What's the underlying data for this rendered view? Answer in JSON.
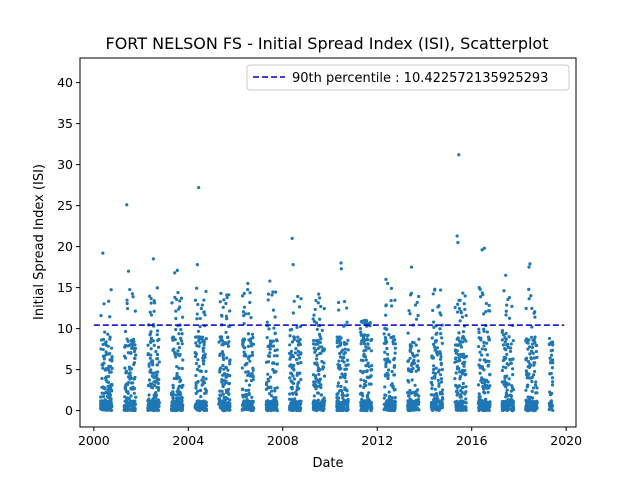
{
  "chart_data": {
    "type": "scatter",
    "title": "FORT NELSON FS - Initial Spread Index (ISI), Scatterplot",
    "xlabel": "Date",
    "ylabel": "Initial Spread Index (ISI)",
    "xlim": [
      "1999-06-01",
      "2020-06-01"
    ],
    "ylim": [
      -2,
      43
    ],
    "x_ticks": [
      "2000-01-01",
      "2004-01-01",
      "2008-01-01",
      "2012-01-01",
      "2016-01-01",
      "2020-01-01"
    ],
    "x_tick_labels": [
      "2000",
      "2004",
      "2008",
      "2012",
      "2016",
      "2020"
    ],
    "y_ticks": [
      0,
      5,
      10,
      15,
      20,
      25,
      30,
      35,
      40
    ],
    "grid": false,
    "legend_position": "top-right",
    "point_color": "#1f77b4",
    "reference_line": {
      "label": "90th percentile : 10.422572135925293",
      "value": 10.422572135925293,
      "x_range": [
        "2000-01-01",
        "2019-12-01"
      ],
      "color": "#0000cc",
      "style": "dashed"
    },
    "seasons": [
      {
        "start": "2000-04-15",
        "end": "2000-10-10",
        "max": 19.2
      },
      {
        "start": "2001-04-15",
        "end": "2001-10-10",
        "max": 25.1
      },
      {
        "start": "2002-04-15",
        "end": "2002-10-10",
        "max": 18.5
      },
      {
        "start": "2003-04-15",
        "end": "2003-10-10",
        "max": 17.1
      },
      {
        "start": "2004-04-15",
        "end": "2004-10-10",
        "max": 27.2
      },
      {
        "start": "2005-04-15",
        "end": "2005-10-10",
        "max": 14.3
      },
      {
        "start": "2006-04-15",
        "end": "2006-10-10",
        "max": 15.5
      },
      {
        "start": "2007-04-15",
        "end": "2007-10-10",
        "max": 15.8
      },
      {
        "start": "2008-04-15",
        "end": "2008-10-10",
        "max": 21.0
      },
      {
        "start": "2009-04-15",
        "end": "2009-10-10",
        "max": 14.2
      },
      {
        "start": "2010-04-15",
        "end": "2010-10-10",
        "max": 18.0
      },
      {
        "start": "2011-04-15",
        "end": "2011-10-10",
        "max": 11.0
      },
      {
        "start": "2012-04-15",
        "end": "2012-10-10",
        "max": 16.0
      },
      {
        "start": "2013-04-15",
        "end": "2013-10-10",
        "max": 17.5
      },
      {
        "start": "2014-04-15",
        "end": "2014-10-10",
        "max": 14.8
      },
      {
        "start": "2015-04-15",
        "end": "2015-10-10",
        "max": 31.2
      },
      {
        "start": "2016-04-15",
        "end": "2016-10-10",
        "max": 19.8
      },
      {
        "start": "2017-04-15",
        "end": "2017-10-10",
        "max": 16.5
      },
      {
        "start": "2018-04-15",
        "end": "2018-10-10",
        "max": 17.9
      },
      {
        "start": "2019-04-15",
        "end": "2019-06-10",
        "max": 7.3
      }
    ],
    "highlight_points": [
      {
        "date": "2000-05-20",
        "value": 19.2
      },
      {
        "date": "2001-05-25",
        "value": 25.1
      },
      {
        "date": "2001-06-20",
        "value": 17.0
      },
      {
        "date": "2002-07-10",
        "value": 18.5
      },
      {
        "date": "2003-06-05",
        "value": 16.8
      },
      {
        "date": "2003-07-15",
        "value": 17.1
      },
      {
        "date": "2004-06-10",
        "value": 27.2
      },
      {
        "date": "2004-05-20",
        "value": 17.8
      },
      {
        "date": "2005-05-20",
        "value": 14.3
      },
      {
        "date": "2006-07-10",
        "value": 15.5
      },
      {
        "date": "2007-06-15",
        "value": 15.8
      },
      {
        "date": "2008-05-25",
        "value": 21.0
      },
      {
        "date": "2008-06-10",
        "value": 17.8
      },
      {
        "date": "2009-07-10",
        "value": 14.2
      },
      {
        "date": "2010-06-20",
        "value": 18.0
      },
      {
        "date": "2010-06-25",
        "value": 17.3
      },
      {
        "date": "2011-07-01",
        "value": 11.0
      },
      {
        "date": "2012-05-15",
        "value": 16.0
      },
      {
        "date": "2012-06-10",
        "value": 15.5
      },
      {
        "date": "2013-06-15",
        "value": 17.5
      },
      {
        "date": "2014-06-10",
        "value": 14.8
      },
      {
        "date": "2015-06-15",
        "value": 31.2
      },
      {
        "date": "2015-05-20",
        "value": 21.3
      },
      {
        "date": "2015-06-01",
        "value": 20.5
      },
      {
        "date": "2016-06-10",
        "value": 19.6
      },
      {
        "date": "2016-07-15",
        "value": 19.8
      },
      {
        "date": "2017-06-10",
        "value": 16.5
      },
      {
        "date": "2018-06-20",
        "value": 17.9
      },
      {
        "date": "2018-06-05",
        "value": 17.5
      },
      {
        "date": "2019-05-15",
        "value": 7.3
      }
    ]
  }
}
